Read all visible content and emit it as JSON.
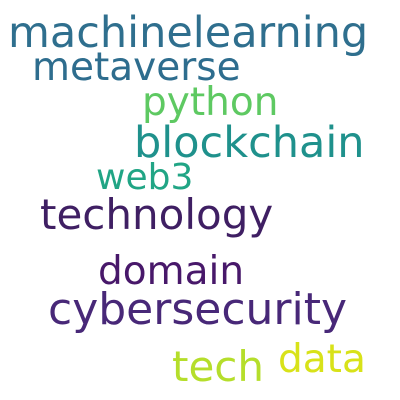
{
  "words": [
    {
      "text": "machinelearning",
      "color": "#2f6f8e"
    },
    {
      "text": "metaverse",
      "color": "#2e6d8e"
    },
    {
      "text": "python",
      "color": "#5ec962"
    },
    {
      "text": "blockchain",
      "color": "#1f918c"
    },
    {
      "text": "web3",
      "color": "#21a585"
    },
    {
      "text": "technology",
      "color": "#3f1f63"
    },
    {
      "text": "domain",
      "color": "#48186a"
    },
    {
      "text": "cybersecurity",
      "color": "#482878"
    },
    {
      "text": "data",
      "color": "#d8e219"
    },
    {
      "text": "tech",
      "color": "#b5de2b"
    }
  ]
}
